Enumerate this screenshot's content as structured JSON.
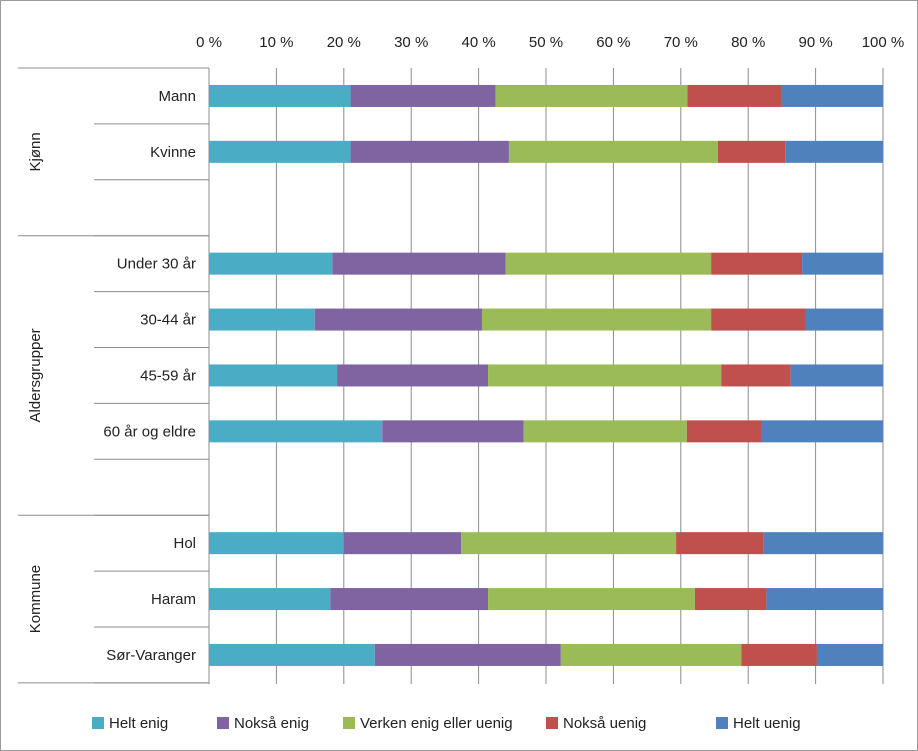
{
  "chart_data": {
    "type": "bar",
    "orientation": "horizontal",
    "stacked": true,
    "percent": true,
    "xlim": [
      0,
      100
    ],
    "x_ticks": [
      "0 %",
      "10 %",
      "20 %",
      "30 %",
      "40 %",
      "50 %",
      "60 %",
      "70 %",
      "80 %",
      "90 %",
      "100 %"
    ],
    "grid": "vertical",
    "legend_position": "bottom",
    "groups": [
      {
        "label": "Kjønn",
        "rows": [
          {
            "label": "Mann",
            "values": [
              21,
              21.5,
              28.5,
              14,
              15
            ]
          },
          {
            "label": "Kvinne",
            "values": [
              21,
              23.5,
              31,
              10,
              14.5
            ]
          },
          {
            "label": "",
            "values": []
          }
        ]
      },
      {
        "label": "Aldersgrupper",
        "rows": [
          {
            "label": "Under 30 år",
            "values": [
              18.3,
              25.7,
              30.5,
              13.5,
              12
            ]
          },
          {
            "label": "30-44 år",
            "values": [
              15.7,
              24.8,
              34,
              14,
              11.5
            ]
          },
          {
            "label": "45-59 år",
            "values": [
              19,
              22.4,
              34.6,
              10.3,
              13.7
            ]
          },
          {
            "label": "60 år og eldre",
            "values": [
              25.7,
              21,
              24.2,
              11,
              18.1
            ]
          },
          {
            "label": "",
            "values": []
          }
        ]
      },
      {
        "label": "Kommune",
        "rows": [
          {
            "label": "Hol",
            "values": [
              20,
              17.4,
              31.9,
              13,
              17.7
            ]
          },
          {
            "label": "Haram",
            "values": [
              18,
              23.4,
              30.7,
              10.6,
              17.3
            ]
          },
          {
            "label": "Sør-Varanger",
            "values": [
              24.6,
              27.6,
              26.8,
              11.2,
              9.8
            ]
          }
        ]
      }
    ],
    "series": [
      {
        "name": "Helt enig",
        "color": "#4BACC6"
      },
      {
        "name": "Nokså enig",
        "color": "#8064A2"
      },
      {
        "name": "Verken enig eller uenig",
        "color": "#9BBB59"
      },
      {
        "name": "Nokså uenig",
        "color": "#C0504D"
      },
      {
        "name": "Helt uenig",
        "color": "#4F81BD"
      }
    ]
  }
}
